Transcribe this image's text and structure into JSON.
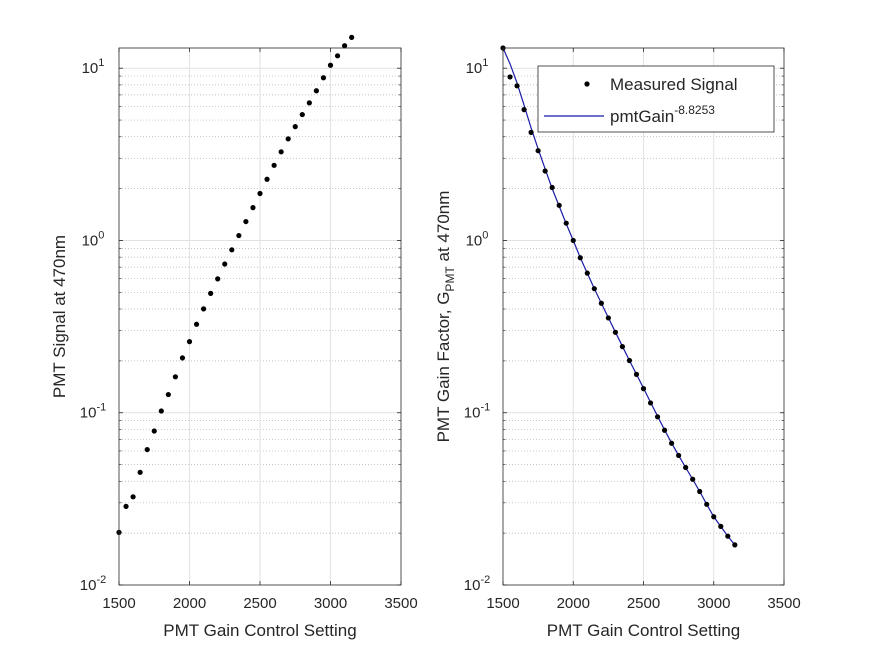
{
  "figure": {
    "background": "#ffffff"
  },
  "chart_data": [
    {
      "type": "scatter",
      "title": "",
      "xlabel": "PMT Gain Control Setting",
      "ylabel": "PMT Signal at 470nm",
      "xscale": "linear",
      "yscale": "log",
      "xlim": [
        1500,
        3500
      ],
      "ylim": [
        0.01,
        13.1
      ],
      "xticks": [
        1500,
        2000,
        2500,
        3000,
        3500
      ],
      "xtick_labels": [
        "1500",
        "2000",
        "2500",
        "3000",
        "3500"
      ],
      "yticks": [
        0.01,
        0.1,
        1,
        10
      ],
      "ytick_labels": [
        {
          "base": "10",
          "exp": "-2"
        },
        {
          "base": "10",
          "exp": "-1"
        },
        {
          "base": "10",
          "exp": "0"
        },
        {
          "base": "10",
          "exp": "1"
        }
      ],
      "grid": true,
      "minor_grid": true,
      "series": [
        {
          "name": "PMT Signal",
          "color": "#000000",
          "marker": "dot",
          "x": [
            1500,
            1550,
            1600,
            1650,
            1700,
            1750,
            1800,
            1850,
            1900,
            1950,
            2000,
            2050,
            2100,
            2150,
            2200,
            2250,
            2300,
            2350,
            2400,
            2450,
            2500,
            2550,
            2600,
            2650,
            2700,
            2750,
            2800,
            2850,
            2900,
            2950,
            3000,
            3050,
            3100,
            3150
          ],
          "y": [
            0.0202,
            0.0286,
            0.0325,
            0.0451,
            0.0611,
            0.0783,
            0.1023,
            0.1275,
            0.1616,
            0.2081,
            0.2587,
            0.3262,
            0.4008,
            0.4929,
            0.5986,
            0.7298,
            0.8823,
            1.068,
            1.287,
            1.551,
            1.874,
            2.266,
            2.73,
            3.27,
            3.89,
            4.58,
            5.38,
            6.29,
            7.4,
            8.8,
            10.4,
            11.8,
            13.5,
            15.1
          ]
        }
      ]
    },
    {
      "type": "scatter",
      "title": "",
      "xlabel": "PMT Gain Control Setting",
      "ylabel": {
        "main": "PMT Gain Factor, G",
        "sub": "PMT",
        "rest": " at 470nm"
      },
      "xscale": "linear",
      "yscale": "log",
      "xlim": [
        1500,
        3500
      ],
      "ylim": [
        0.01,
        13.1
      ],
      "xticks": [
        1500,
        2000,
        2500,
        3000,
        3500
      ],
      "xtick_labels": [
        "1500",
        "2000",
        "2500",
        "3000",
        "3500"
      ],
      "yticks": [
        0.01,
        0.1,
        1,
        10
      ],
      "ytick_labels": [
        {
          "base": "10",
          "exp": "-2"
        },
        {
          "base": "10",
          "exp": "-1"
        },
        {
          "base": "10",
          "exp": "0"
        },
        {
          "base": "10",
          "exp": "1"
        }
      ],
      "grid": true,
      "minor_grid": true,
      "legend": {
        "location": "top-right",
        "entries": [
          {
            "label": "Measured Signal",
            "style": "marker"
          },
          {
            "label": "pmtGain",
            "superscript": "-8.8253",
            "style": "line"
          }
        ]
      },
      "series": [
        {
          "name": "Measured Signal",
          "color": "#000000",
          "marker": "dot",
          "x": [
            1500,
            1550,
            1600,
            1650,
            1700,
            1750,
            1800,
            1850,
            1900,
            1950,
            2000,
            2050,
            2100,
            2150,
            2200,
            2250,
            2300,
            2350,
            2400,
            2450,
            2500,
            2550,
            2600,
            2650,
            2700,
            2750,
            2800,
            2850,
            2900,
            2950,
            3000,
            3050,
            3100,
            3150
          ],
          "y": [
            13.1,
            8.9,
            7.9,
            5.75,
            4.24,
            3.32,
            2.53,
            2.03,
            1.6,
            1.26,
            1.0,
            0.794,
            0.646,
            0.525,
            0.432,
            0.355,
            0.293,
            0.242,
            0.201,
            0.167,
            0.138,
            0.114,
            0.0947,
            0.0791,
            0.0665,
            0.0565,
            0.0481,
            0.0411,
            0.0349,
            0.0294,
            0.0249,
            0.0219,
            0.0192,
            0.0171
          ]
        },
        {
          "name": "pmtGain^-8.8253",
          "color": "#1a1aa8",
          "marker": "line",
          "x": [
            1500,
            1550,
            1600,
            1650,
            1700,
            1750,
            1800,
            1850,
            1900,
            1950,
            2000,
            2050,
            2100,
            2150,
            2200,
            2250,
            2300,
            2350,
            2400,
            2450,
            2500,
            2550,
            2600,
            2650,
            2700,
            2750,
            2800,
            2850,
            2900,
            2950,
            3000,
            3050,
            3100,
            3150
          ],
          "y": [
            13.1,
            10.6,
            8.2,
            6.1,
            4.5,
            3.4,
            2.6,
            2.0,
            1.58,
            1.25,
            1.0,
            0.795,
            0.645,
            0.525,
            0.432,
            0.356,
            0.294,
            0.243,
            0.201,
            0.167,
            0.139,
            0.115,
            0.0955,
            0.0795,
            0.0667,
            0.0565,
            0.0481,
            0.0411,
            0.0349,
            0.0294,
            0.0249,
            0.0219,
            0.0192,
            0.0171
          ]
        }
      ]
    }
  ]
}
